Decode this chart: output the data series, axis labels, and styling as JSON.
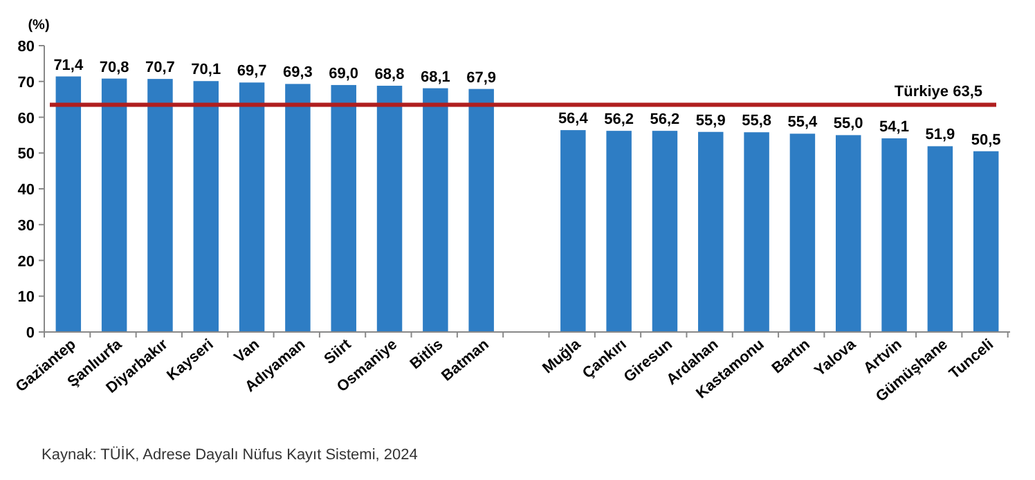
{
  "chart_data": {
    "type": "bar",
    "ylabel": "(%)",
    "categories": [
      "Gaziantep",
      "Şanlıurfa",
      "Diyarbakır",
      "Kayseri",
      "Van",
      "Adıyaman",
      "Siirt",
      "Osmaniye",
      "Bitlis",
      "Batman",
      null,
      "Muğla",
      "Çankırı",
      "Giresun",
      "Ardahan",
      "Kastamonu",
      "Bartın",
      "Yalova",
      "Artvin",
      "Gümüşhane",
      "Tunceli"
    ],
    "values": [
      71.4,
      70.8,
      70.7,
      70.1,
      69.7,
      69.3,
      69.0,
      68.8,
      68.1,
      67.9,
      null,
      56.4,
      56.2,
      56.2,
      55.9,
      55.8,
      55.4,
      55.0,
      54.1,
      51.9,
      50.5
    ],
    "value_labels": [
      "71,4",
      "70,8",
      "70,7",
      "70,1",
      "69,7",
      "69,3",
      "69,0",
      "68,8",
      "68,1",
      "67,9",
      null,
      "56,4",
      "56,2",
      "56,2",
      "55,9",
      "55,8",
      "55,4",
      "55,0",
      "54,1",
      "51,9",
      "50,5"
    ],
    "color": "#2e7dc4",
    "ylim": [
      0,
      80
    ],
    "yticks": [
      0,
      10,
      20,
      30,
      40,
      50,
      60,
      70,
      80
    ],
    "ref_lines": [
      {
        "axis": "y",
        "value": 63.5,
        "label": "Türkiye  63,5",
        "color": "#b01e1e"
      }
    ],
    "annotations": [
      "Kaynak: TÜİK, Adrese Dayalı Nüfus Kayıt Sistemi, 2024"
    ]
  }
}
